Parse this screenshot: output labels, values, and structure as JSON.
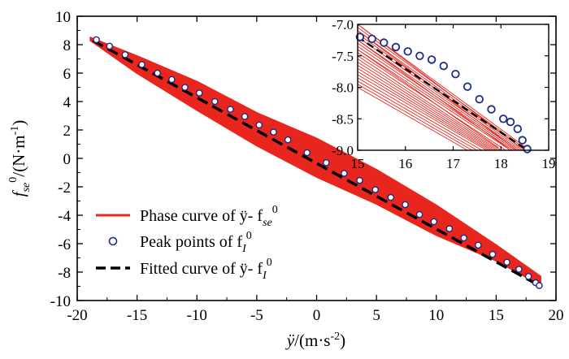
{
  "chart_data": {
    "type": "scatter",
    "colors": {
      "phase": "#e8261e",
      "peak": "#1c2a8c",
      "fitted": "#000000",
      "axis": "#000000",
      "background": "#ffffff"
    },
    "main": {
      "xlabel": {
        "var": "ÿ",
        "unit_pre": "/(m·s",
        "sup": "-2",
        "unit_post": ")"
      },
      "ylabel": {
        "f": "f",
        "sub": "se",
        "sup": "0",
        "unit_pre": "/(N·m",
        "sup2": "-1",
        "unit_post": ")"
      },
      "xlim": [
        -20,
        20
      ],
      "ylim": [
        -10,
        10
      ],
      "xticks": [
        -20,
        -15,
        -10,
        -5,
        0,
        5,
        10,
        15,
        20
      ],
      "yticks": [
        -10,
        -8,
        -6,
        -4,
        -2,
        0,
        2,
        4,
        6,
        8,
        10
      ],
      "phase_band": {
        "upper": [
          [
            -18.9,
            8.5
          ],
          [
            -15,
            7.2
          ],
          [
            -10,
            5.4
          ],
          [
            -5,
            3.2
          ],
          [
            0,
            1.4
          ],
          [
            5,
            -0.8
          ],
          [
            10,
            -3.3
          ],
          [
            15,
            -6.1
          ],
          [
            18.7,
            -8.3
          ]
        ],
        "lower": [
          [
            -18.9,
            8.3
          ],
          [
            -15,
            6.0
          ],
          [
            -10,
            3.4
          ],
          [
            -5,
            0.9
          ],
          [
            0,
            -1.3
          ],
          [
            5,
            -3.2
          ],
          [
            10,
            -5.4
          ],
          [
            15,
            -7.2
          ],
          [
            18.7,
            -8.9
          ]
        ]
      },
      "fitted_line": [
        [
          -18.7,
          8.3
        ],
        [
          18.5,
          -8.9
        ]
      ],
      "peak_points": [
        [
          -18.4,
          8.35
        ],
        [
          -17.3,
          7.9
        ],
        [
          -16.0,
          7.3
        ],
        [
          -14.6,
          6.6
        ],
        [
          -13.3,
          6.0
        ],
        [
          -12.1,
          5.55
        ],
        [
          -11.0,
          5.0
        ],
        [
          -9.8,
          4.6
        ],
        [
          -8.5,
          4.0
        ],
        [
          -7.2,
          3.45
        ],
        [
          -6.0,
          2.95
        ],
        [
          -4.8,
          2.35
        ],
        [
          -3.6,
          1.85
        ],
        [
          -2.4,
          1.3
        ],
        [
          -0.8,
          0.4
        ],
        [
          0.8,
          -0.3
        ],
        [
          2.3,
          -1.05
        ],
        [
          3.6,
          -1.55
        ],
        [
          4.9,
          -2.2
        ],
        [
          6.2,
          -2.75
        ],
        [
          7.4,
          -3.25
        ],
        [
          8.6,
          -3.95
        ],
        [
          9.8,
          -4.45
        ],
        [
          11.1,
          -4.95
        ],
        [
          12.3,
          -5.6
        ],
        [
          13.5,
          -6.1
        ],
        [
          14.7,
          -6.75
        ],
        [
          15.9,
          -7.3
        ],
        [
          16.9,
          -7.8
        ],
        [
          17.7,
          -8.3
        ],
        [
          18.3,
          -8.75
        ],
        [
          18.6,
          -8.95
        ]
      ]
    },
    "inset": {
      "xlim": [
        15,
        19
      ],
      "ylim": [
        -9.0,
        -7.0
      ],
      "xticks": [
        15,
        16,
        17,
        18,
        19
      ],
      "yticks": [
        -7.0,
        -7.5,
        -8.0,
        -8.5,
        -9.0
      ],
      "ytick_labels": [
        "-7.0",
        "-7.5",
        "-8.0",
        "-8.5",
        "-9.0"
      ],
      "phase_lines": [
        [
          [
            15,
            -7.0
          ],
          [
            18.6,
            -9.0
          ]
        ],
        [
          [
            15,
            -7.05
          ],
          [
            18.55,
            -9.0
          ]
        ],
        [
          [
            15,
            -7.1
          ],
          [
            18.5,
            -9.0
          ]
        ],
        [
          [
            15,
            -7.15
          ],
          [
            18.45,
            -9.0
          ]
        ],
        [
          [
            15,
            -7.2
          ],
          [
            18.4,
            -9.0
          ]
        ],
        [
          [
            15,
            -7.25
          ],
          [
            18.35,
            -9.0
          ]
        ],
        [
          [
            15,
            -7.3
          ],
          [
            18.3,
            -9.0
          ]
        ],
        [
          [
            15,
            -7.35
          ],
          [
            18.25,
            -9.0
          ]
        ],
        [
          [
            15,
            -7.4
          ],
          [
            18.2,
            -9.0
          ]
        ],
        [
          [
            15,
            -7.45
          ],
          [
            18.1,
            -9.0
          ]
        ],
        [
          [
            15,
            -7.5
          ],
          [
            18.0,
            -9.0
          ]
        ],
        [
          [
            15,
            -7.55
          ],
          [
            17.95,
            -9.0
          ]
        ],
        [
          [
            15,
            -7.6
          ],
          [
            17.9,
            -9.0
          ]
        ],
        [
          [
            15,
            -7.65
          ],
          [
            17.85,
            -9.0
          ]
        ],
        [
          [
            15,
            -7.7
          ],
          [
            17.8,
            -9.0
          ]
        ],
        [
          [
            15,
            -7.75
          ],
          [
            17.75,
            -9.0
          ]
        ],
        [
          [
            15,
            -7.8
          ],
          [
            17.7,
            -9.0
          ]
        ],
        [
          [
            15,
            -7.85
          ],
          [
            17.6,
            -9.0
          ]
        ],
        [
          [
            15,
            -7.9
          ],
          [
            17.5,
            -9.0
          ]
        ],
        [
          [
            15,
            -7.95
          ],
          [
            17.4,
            -9.0
          ]
        ],
        [
          [
            15,
            -8.0
          ],
          [
            17.3,
            -9.0
          ]
        ],
        [
          [
            15,
            -7.0
          ],
          [
            18.4,
            -8.95
          ]
        ],
        [
          [
            15,
            -7.1
          ],
          [
            18.3,
            -8.98
          ]
        ],
        [
          [
            15,
            -7.25
          ],
          [
            18.15,
            -8.97
          ]
        ],
        [
          [
            15,
            -7.4
          ],
          [
            17.95,
            -8.96
          ]
        ]
      ],
      "fitted_line": [
        [
          15,
          -7.2
        ],
        [
          18.5,
          -8.97
        ]
      ],
      "peak_points": [
        [
          15.05,
          -7.2
        ],
        [
          15.3,
          -7.23
        ],
        [
          15.55,
          -7.29
        ],
        [
          15.8,
          -7.36
        ],
        [
          16.05,
          -7.43
        ],
        [
          16.3,
          -7.5
        ],
        [
          16.55,
          -7.56
        ],
        [
          16.8,
          -7.66
        ],
        [
          17.05,
          -7.79
        ],
        [
          17.3,
          -7.99
        ],
        [
          17.55,
          -8.19
        ],
        [
          17.8,
          -8.35
        ],
        [
          18.05,
          -8.5
        ],
        [
          18.2,
          -8.55
        ],
        [
          18.35,
          -8.66
        ],
        [
          18.45,
          -8.84
        ],
        [
          18.55,
          -8.98
        ]
      ]
    },
    "legend": {
      "placement": "bottom-left",
      "phase": {
        "text": "Phase curve of ÿ- f",
        "sub": "se",
        "sup": "0"
      },
      "peak": {
        "text": "Peak points of f",
        "sub": "I",
        "sup": "0"
      },
      "fitted": {
        "text": "Fitted curve of ÿ- f",
        "sub": "I",
        "sup": "0"
      }
    }
  }
}
